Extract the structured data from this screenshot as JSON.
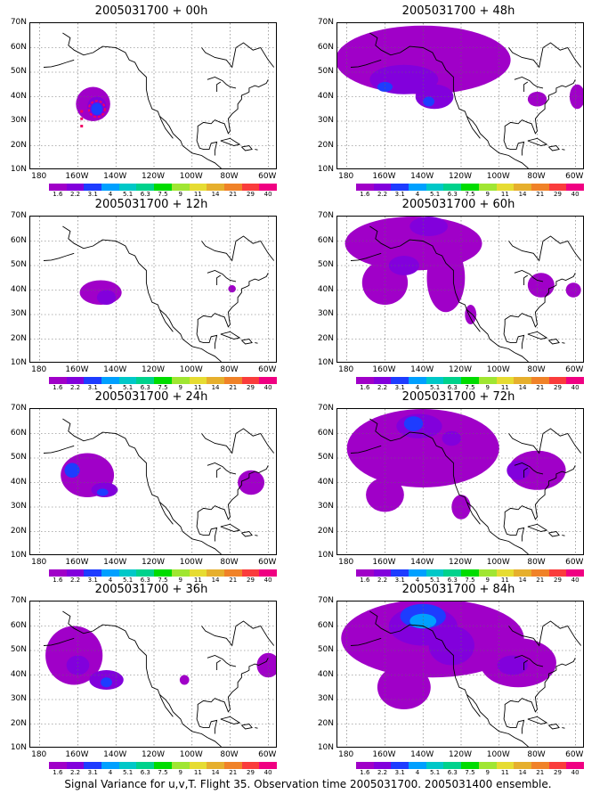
{
  "caption": "Signal Variance for u,v,T. Flight 35. Observation time 2005031700. 2005031400 ensemble.",
  "latitude_labels": [
    "70N",
    "60N",
    "50N",
    "40N",
    "30N",
    "20N",
    "10N"
  ],
  "longitude_labels": [
    "180",
    "160W",
    "140W",
    "120W",
    "100W",
    "80W",
    "60W"
  ],
  "colorbar": {
    "labels": [
      "1.6",
      "2.2",
      "3.1",
      "4",
      "5.1",
      "6.3",
      "7.5",
      "9",
      "11",
      "14",
      "21",
      "29",
      "40"
    ],
    "colors": [
      "#a000c8",
      "#8200dc",
      "#1e3cff",
      "#00a0ff",
      "#00c8c8",
      "#00d28c",
      "#00dc00",
      "#a0e632",
      "#e6dc32",
      "#e6af2d",
      "#f08228",
      "#fa3c3c",
      "#f00082"
    ]
  },
  "panels": [
    {
      "title": "2005031700 + 00h"
    },
    {
      "title": "2005031700 + 48h"
    },
    {
      "title": "2005031700 + 12h"
    },
    {
      "title": "2005031700 + 60h"
    },
    {
      "title": "2005031700 + 24h"
    },
    {
      "title": "2005031700 + 72h"
    },
    {
      "title": "2005031700 + 36h"
    },
    {
      "title": "2005031700 + 84h"
    }
  ]
}
